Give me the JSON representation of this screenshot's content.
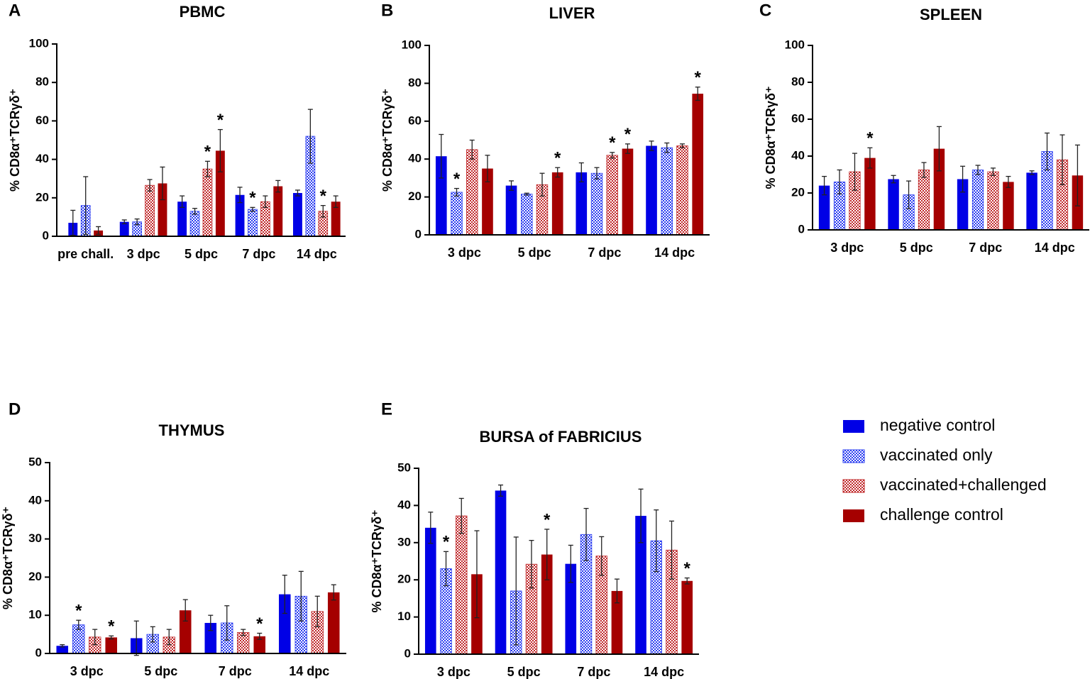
{
  "chart_data": [
    {
      "type": "bar",
      "panel": "A",
      "title": "PBMC",
      "ylabel": "% CD8α⁺TCRγδ⁺",
      "categories": [
        "pre chall.",
        "3 dpc",
        "5 dpc",
        "7 dpc",
        "14 dpc"
      ],
      "ylim": [
        0,
        100
      ],
      "yticks": [
        0,
        20,
        40,
        60,
        80,
        100
      ],
      "series": [
        {
          "name": "negative control",
          "color": "#0000e6",
          "pattern": "solid",
          "values": [
            7,
            7.5,
            18,
            21.5,
            22.5
          ],
          "errors": [
            6.5,
            1,
            3,
            4,
            1.5
          ],
          "annotations": [
            null,
            null,
            null,
            null,
            null
          ]
        },
        {
          "name": "vaccinated only",
          "color": "#2a3cf0",
          "pattern": "checker",
          "values": [
            16,
            7.5,
            13,
            14,
            52
          ],
          "errors": [
            15,
            1.5,
            1.5,
            1,
            14
          ],
          "annotations": [
            null,
            null,
            null,
            "*",
            null
          ]
        },
        {
          "name": "vaccinated+challenged",
          "color": "#c0282a",
          "pattern": "checker",
          "values": [
            null,
            26.5,
            35,
            18,
            13
          ],
          "errors": [
            null,
            3,
            4,
            3,
            3
          ],
          "annotations": [
            null,
            null,
            "*",
            null,
            "*"
          ]
        },
        {
          "name": "challenge control",
          "color": "#a50000",
          "pattern": "solid",
          "values": [
            3,
            27.5,
            44.5,
            26,
            18
          ],
          "errors": [
            2,
            8.5,
            11,
            3,
            3
          ],
          "annotations": [
            null,
            null,
            "*",
            null,
            null
          ]
        }
      ]
    },
    {
      "type": "bar",
      "panel": "B",
      "title": "LIVER",
      "ylabel": "% CD8α⁺TCRγδ⁺",
      "categories": [
        "3 dpc",
        "5 dpc",
        "7 dpc",
        "14 dpc"
      ],
      "ylim": [
        0,
        100
      ],
      "yticks": [
        0,
        20,
        40,
        60,
        80,
        100
      ],
      "series": [
        {
          "name": "negative control",
          "color": "#0000e6",
          "pattern": "solid",
          "values": [
            41.5,
            26,
            33,
            47
          ],
          "errors": [
            11.5,
            2.5,
            5,
            2.5
          ],
          "annotations": [
            null,
            null,
            null,
            null
          ]
        },
        {
          "name": "vaccinated only",
          "color": "#2a3cf0",
          "pattern": "checker",
          "values": [
            22.5,
            21.5,
            32.5,
            46
          ],
          "errors": [
            2,
            0.5,
            3,
            2.5
          ],
          "annotations": [
            "*",
            null,
            null,
            null
          ]
        },
        {
          "name": "vaccinated+challenged",
          "color": "#c0282a",
          "pattern": "checker",
          "values": [
            45,
            26.5,
            42,
            47
          ],
          "errors": [
            5,
            6,
            1.5,
            1
          ],
          "annotations": [
            null,
            null,
            "*",
            null
          ]
        },
        {
          "name": "challenge control",
          "color": "#a50000",
          "pattern": "solid",
          "values": [
            35,
            33,
            45.5,
            74.5
          ],
          "errors": [
            7,
            2.5,
            2.5,
            3.5
          ],
          "annotations": [
            null,
            "*",
            "*",
            "*"
          ]
        }
      ]
    },
    {
      "type": "bar",
      "panel": "C",
      "title": "SPLEEN",
      "ylabel": "% CD8α⁺TCRγδ⁺",
      "categories": [
        "3 dpc",
        "5 dpc",
        "7 dpc",
        "14 dpc"
      ],
      "ylim": [
        0,
        100
      ],
      "yticks": [
        0,
        20,
        40,
        60,
        80,
        100
      ],
      "series": [
        {
          "name": "negative control",
          "color": "#0000e6",
          "pattern": "solid",
          "values": [
            24,
            27.5,
            27.5,
            31
          ],
          "errors": [
            5,
            2,
            7,
            1
          ],
          "annotations": [
            null,
            null,
            null,
            null
          ]
        },
        {
          "name": "vaccinated only",
          "color": "#2a3cf0",
          "pattern": "checker",
          "values": [
            26,
            19,
            32.5,
            42.5
          ],
          "errors": [
            6.5,
            7.5,
            2.5,
            10
          ],
          "annotations": [
            null,
            null,
            null,
            null
          ]
        },
        {
          "name": "vaccinated+challenged",
          "color": "#c0282a",
          "pattern": "checker",
          "values": [
            31.5,
            32.5,
            31.5,
            38
          ],
          "errors": [
            10,
            4,
            2,
            13.5
          ],
          "annotations": [
            null,
            null,
            null,
            null
          ]
        },
        {
          "name": "challenge control",
          "color": "#a50000",
          "pattern": "solid",
          "values": [
            39,
            44,
            26,
            29.5
          ],
          "errors": [
            5.5,
            12,
            3,
            16.5
          ],
          "annotations": [
            "*",
            null,
            null,
            null
          ]
        }
      ]
    },
    {
      "type": "bar",
      "panel": "D",
      "title": "THYMUS",
      "ylabel": "% CD8α⁺TCRγδ⁺",
      "categories": [
        "3 dpc",
        "5 dpc",
        "7 dpc",
        "14 dpc"
      ],
      "ylim": [
        0,
        50
      ],
      "yticks": [
        0,
        10,
        20,
        30,
        40,
        50
      ],
      "series": [
        {
          "name": "negative control",
          "color": "#0000e6",
          "pattern": "solid",
          "values": [
            2,
            4,
            8,
            15.5
          ],
          "errors": [
            0.3,
            4.5,
            2,
            5
          ],
          "annotations": [
            null,
            null,
            null,
            null
          ]
        },
        {
          "name": "vaccinated only",
          "color": "#2a3cf0",
          "pattern": "checker",
          "values": [
            7.5,
            5,
            8,
            15
          ],
          "errors": [
            1.2,
            2,
            4.5,
            6.5
          ],
          "annotations": [
            "*",
            null,
            null,
            null
          ]
        },
        {
          "name": "vaccinated+challenged",
          "color": "#c0282a",
          "pattern": "checker",
          "values": [
            4.3,
            4.3,
            5.5,
            11
          ],
          "errors": [
            2,
            2,
            0.8,
            4
          ],
          "annotations": [
            null,
            null,
            null,
            null
          ]
        },
        {
          "name": "challenge control",
          "color": "#a50000",
          "pattern": "solid",
          "values": [
            4.2,
            11.3,
            4.5,
            16
          ],
          "errors": [
            0.4,
            2.8,
            0.8,
            2
          ],
          "annotations": [
            "*",
            null,
            "*",
            null
          ]
        }
      ]
    },
    {
      "type": "bar",
      "panel": "E",
      "title": "BURSA of FABRICIUS",
      "ylabel": "% CD8α⁺TCRγδ⁺",
      "categories": [
        "3 dpc",
        "5 dpc",
        "7 dpc",
        "14 dpc"
      ],
      "ylim": [
        0,
        50
      ],
      "yticks": [
        0,
        10,
        20,
        30,
        40,
        50
      ],
      "series": [
        {
          "name": "negative control",
          "color": "#0000e6",
          "pattern": "solid",
          "values": [
            34,
            44,
            24.3,
            37.2
          ],
          "errors": [
            4.2,
            1.5,
            5,
            7.2
          ],
          "annotations": [
            null,
            null,
            null,
            null
          ]
        },
        {
          "name": "vaccinated only",
          "color": "#2a3cf0",
          "pattern": "checker",
          "values": [
            23,
            17,
            32.2,
            30.5
          ],
          "errors": [
            4.6,
            14.5,
            7,
            8.3
          ],
          "annotations": [
            "*",
            null,
            null,
            null
          ]
        },
        {
          "name": "vaccinated+challenged",
          "color": "#c0282a",
          "pattern": "checker",
          "values": [
            37.2,
            24.2,
            26.4,
            28
          ],
          "errors": [
            4.7,
            6.4,
            5.2,
            7.8
          ],
          "annotations": [
            null,
            null,
            null,
            null
          ]
        },
        {
          "name": "challenge control",
          "color": "#a50000",
          "pattern": "solid",
          "values": [
            21.5,
            26.8,
            17,
            19.7
          ],
          "errors": [
            11.7,
            6.8,
            3.2,
            0.8
          ],
          "annotations": [
            null,
            "*",
            null,
            "*"
          ]
        }
      ]
    }
  ]
}
